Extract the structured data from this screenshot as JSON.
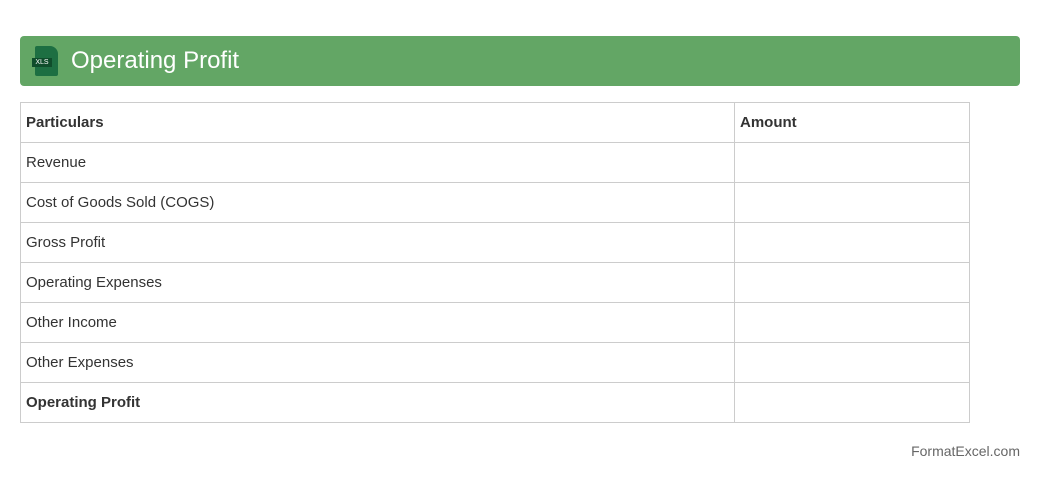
{
  "header": {
    "title": "Operating Profit",
    "icon": "xls-file-icon",
    "icon_label": "XLS",
    "color": "#63a665"
  },
  "table": {
    "headers": [
      "Particulars",
      "Amount"
    ],
    "rows": [
      [
        "Revenue",
        ""
      ],
      [
        "Cost of Goods Sold (COGS)",
        ""
      ],
      [
        "Gross Profit",
        ""
      ],
      [
        "Operating Expenses",
        ""
      ],
      [
        "Other Income",
        ""
      ],
      [
        "Other Expenses",
        ""
      ],
      [
        "Operating Profit",
        ""
      ]
    ]
  },
  "footer": "FormatExcel.com"
}
